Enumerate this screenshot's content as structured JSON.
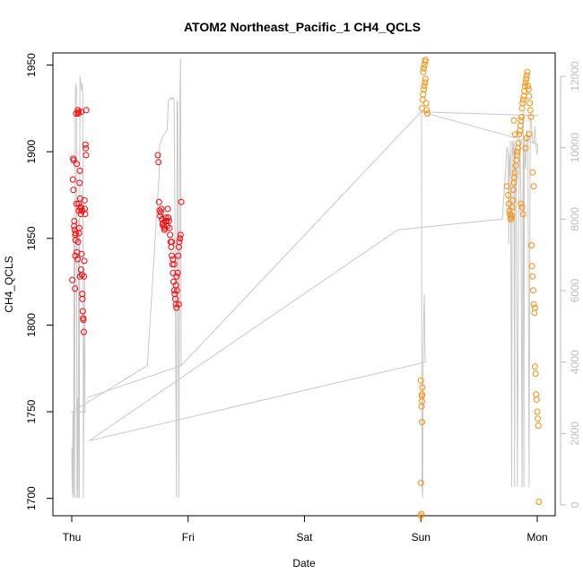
{
  "chart_data": {
    "type": "scatter",
    "title": "ATOM2 Northeast_Pacific_1 CH4_QCLS",
    "xlabel": "Date",
    "ylabel": "CH4_QCLS",
    "x_ticks": [
      "Thu",
      "Fri",
      "Sat",
      "Sun",
      "Mon"
    ],
    "x_range_days": [
      0,
      4.12
    ],
    "ylim": [
      1690,
      1957
    ],
    "y_ticks": [
      1700,
      1750,
      1800,
      1850,
      1900,
      1950
    ],
    "y2lim": [
      0,
      13000
    ],
    "y2_ticks": [
      0,
      2000,
      4000,
      6000,
      8000,
      10000,
      12000
    ],
    "colors": {
      "series1": "#ff0000",
      "series2": "#ff8c00",
      "altitude": "#c8c8c8"
    },
    "series": [
      {
        "marker": "open-circle",
        "color": "#ff0000",
        "points": [
          [
            0.005,
            1826
          ],
          [
            0.01,
            1884
          ],
          [
            0.012,
            1896
          ],
          [
            0.015,
            1878
          ],
          [
            0.017,
            1895
          ],
          [
            0.02,
            1857
          ],
          [
            0.022,
            1860
          ],
          [
            0.025,
            1855
          ],
          [
            0.03,
            1852
          ],
          [
            0.032,
            1849
          ],
          [
            0.035,
            1853
          ],
          [
            0.038,
            1922
          ],
          [
            0.04,
            1870
          ],
          [
            0.045,
            1842
          ],
          [
            0.05,
            1838
          ],
          [
            0.052,
            1924
          ],
          [
            0.055,
            1922
          ],
          [
            0.058,
            1923
          ],
          [
            0.06,
            1866
          ],
          [
            0.062,
            1853
          ],
          [
            0.065,
            1856
          ],
          [
            0.068,
            1882
          ],
          [
            0.07,
            1889
          ],
          [
            0.072,
            1873
          ],
          [
            0.075,
            1867
          ],
          [
            0.078,
            1864
          ],
          [
            0.08,
            1868
          ],
          [
            0.082,
            1923
          ],
          [
            0.085,
            1841
          ],
          [
            0.088,
            1829
          ],
          [
            0.09,
            1818
          ],
          [
            0.092,
            1815
          ],
          [
            0.095,
            1808
          ],
          [
            0.098,
            1804
          ],
          [
            0.1,
            1803
          ],
          [
            0.103,
            1796
          ],
          [
            0.105,
            1828
          ],
          [
            0.108,
            1837
          ],
          [
            0.11,
            1872
          ],
          [
            0.112,
            1867
          ],
          [
            0.115,
            1864
          ],
          [
            0.118,
            1904
          ],
          [
            0.12,
            1902
          ],
          [
            0.123,
            1898
          ],
          [
            0.125,
            1924
          ],
          [
            0.03,
            1840
          ],
          [
            0.028,
            1821
          ],
          [
            0.042,
            1893
          ],
          [
            0.055,
            1848
          ],
          [
            0.06,
            1870
          ],
          [
            0.07,
            1828
          ],
          [
            0.08,
            1832
          ],
          [
            0.09,
            1866
          ]
        ]
      },
      {
        "marker": "open-circle",
        "color": "#ff0000",
        "points": [
          [
            0.74,
            1898
          ],
          [
            0.745,
            1894
          ],
          [
            0.75,
            1871
          ],
          [
            0.755,
            1866
          ],
          [
            0.76,
            1863
          ],
          [
            0.765,
            1865
          ],
          [
            0.77,
            1867
          ],
          [
            0.775,
            1861
          ],
          [
            0.78,
            1858
          ],
          [
            0.785,
            1859
          ],
          [
            0.79,
            1857
          ],
          [
            0.795,
            1855
          ],
          [
            0.8,
            1856
          ],
          [
            0.805,
            1860
          ],
          [
            0.81,
            1862
          ],
          [
            0.815,
            1860
          ],
          [
            0.82,
            1857
          ],
          [
            0.825,
            1867
          ],
          [
            0.83,
            1862
          ],
          [
            0.835,
            1860
          ],
          [
            0.84,
            1856
          ],
          [
            0.845,
            1852
          ],
          [
            0.85,
            1848
          ],
          [
            0.855,
            1845
          ],
          [
            0.86,
            1840
          ],
          [
            0.865,
            1835
          ],
          [
            0.87,
            1830
          ],
          [
            0.875,
            1825
          ],
          [
            0.88,
            1820
          ],
          [
            0.885,
            1818
          ],
          [
            0.89,
            1815
          ],
          [
            0.895,
            1812
          ],
          [
            0.9,
            1810
          ],
          [
            0.905,
            1820
          ],
          [
            0.91,
            1830
          ],
          [
            0.915,
            1840
          ],
          [
            0.92,
            1845
          ],
          [
            0.925,
            1848
          ],
          [
            0.93,
            1850
          ],
          [
            0.935,
            1852
          ],
          [
            0.94,
            1871
          ],
          [
            0.88,
            1835
          ],
          [
            0.9,
            1828
          ],
          [
            0.92,
            1812
          ],
          [
            0.86,
            1848
          ],
          [
            0.87,
            1838
          ],
          [
            0.895,
            1823
          ]
        ]
      },
      {
        "marker": "open-circle",
        "color": "#ff8c00",
        "points": [
          [
            3.0,
            1690
          ],
          [
            3.005,
            1691
          ],
          [
            3.0,
            1709
          ],
          [
            3.01,
            1744
          ],
          [
            3.005,
            1753
          ],
          [
            3.01,
            1756
          ],
          [
            3.008,
            1759
          ],
          [
            3.01,
            1760
          ],
          [
            3.012,
            1764
          ],
          [
            3.0,
            1768
          ],
          [
            3.01,
            1925
          ],
          [
            3.015,
            1930
          ],
          [
            3.02,
            1933
          ],
          [
            3.025,
            1936
          ],
          [
            3.03,
            1938
          ],
          [
            3.035,
            1940
          ],
          [
            3.04,
            1942
          ],
          [
            3.02,
            1946
          ],
          [
            3.025,
            1948
          ],
          [
            3.03,
            1950
          ],
          [
            3.035,
            1952
          ],
          [
            3.04,
            1953
          ],
          [
            3.045,
            1928
          ],
          [
            3.05,
            1924
          ],
          [
            3.055,
            1922
          ]
        ]
      },
      {
        "marker": "open-circle",
        "color": "#ff8c00",
        "points": [
          [
            3.74,
            1880
          ],
          [
            3.75,
            1875
          ],
          [
            3.755,
            1870
          ],
          [
            3.76,
            1866
          ],
          [
            3.765,
            1864
          ],
          [
            3.77,
            1862
          ],
          [
            3.775,
            1861
          ],
          [
            3.78,
            1863
          ],
          [
            3.785,
            1868
          ],
          [
            3.79,
            1872
          ],
          [
            3.795,
            1878
          ],
          [
            3.8,
            1882
          ],
          [
            3.805,
            1885
          ],
          [
            3.81,
            1888
          ],
          [
            3.815,
            1892
          ],
          [
            3.82,
            1895
          ],
          [
            3.825,
            1898
          ],
          [
            3.83,
            1900
          ],
          [
            3.835,
            1902
          ],
          [
            3.84,
            1905
          ],
          [
            3.845,
            1910
          ],
          [
            3.85,
            1912
          ],
          [
            3.855,
            1915
          ],
          [
            3.86,
            1918
          ],
          [
            3.865,
            1920
          ],
          [
            3.87,
            1925
          ],
          [
            3.875,
            1928
          ],
          [
            3.88,
            1930
          ],
          [
            3.885,
            1932
          ],
          [
            3.89,
            1935
          ],
          [
            3.895,
            1938
          ],
          [
            3.9,
            1940
          ],
          [
            3.905,
            1942
          ],
          [
            3.91,
            1944
          ],
          [
            3.915,
            1946
          ],
          [
            3.92,
            1938
          ],
          [
            3.925,
            1936
          ],
          [
            3.93,
            1932
          ],
          [
            3.935,
            1928
          ],
          [
            3.94,
            1924
          ],
          [
            3.945,
            1920
          ],
          [
            3.95,
            1846
          ],
          [
            3.955,
            1834
          ],
          [
            3.96,
            1828
          ],
          [
            3.965,
            1820
          ],
          [
            3.97,
            1812
          ],
          [
            3.975,
            1807
          ],
          [
            3.98,
            1776
          ],
          [
            3.985,
            1772
          ],
          [
            3.99,
            1760
          ],
          [
            3.995,
            1757
          ],
          [
            4.0,
            1750
          ],
          [
            4.005,
            1746
          ],
          [
            4.01,
            1742
          ],
          [
            4.015,
            1698
          ],
          [
            3.96,
            1888
          ],
          [
            3.97,
            1880
          ],
          [
            3.8,
            1918
          ],
          [
            3.81,
            1910
          ],
          [
            3.86,
            1870
          ],
          [
            3.87,
            1868
          ],
          [
            3.88,
            1864
          ],
          [
            3.9,
            1902
          ],
          [
            3.91,
            1908
          ],
          [
            3.93,
            1910
          ],
          [
            3.98,
            1810
          ]
        ]
      }
    ],
    "altitude_line": [
      [
        0.0,
        1600
      ],
      [
        0.005,
        300
      ],
      [
        0.01,
        2600
      ],
      [
        0.015,
        200
      ],
      [
        0.02,
        7500
      ],
      [
        0.025,
        200
      ],
      [
        0.03,
        11300
      ],
      [
        0.035,
        11800
      ],
      [
        0.04,
        11700
      ],
      [
        0.045,
        200
      ],
      [
        0.05,
        3000
      ],
      [
        0.055,
        200
      ],
      [
        0.06,
        8000
      ],
      [
        0.065,
        200
      ],
      [
        0.07,
        12000
      ],
      [
        0.075,
        11900
      ],
      [
        0.08,
        11700
      ],
      [
        0.085,
        11600
      ],
      [
        0.09,
        11800
      ],
      [
        0.095,
        11500
      ],
      [
        0.1,
        200
      ],
      [
        0.105,
        3300
      ],
      [
        0.11,
        6500
      ],
      [
        0.115,
        2600
      ],
      [
        0.12,
        2600
      ],
      [
        0.125,
        2600
      ],
      [
        0.0,
        2600
      ],
      [
        0.65,
        3900
      ],
      [
        0.75,
        9200
      ],
      [
        0.755,
        10100
      ],
      [
        0.76,
        10100
      ],
      [
        0.77,
        10200
      ],
      [
        0.78,
        10300
      ],
      [
        0.8,
        10400
      ],
      [
        0.82,
        10500
      ],
      [
        0.83,
        11300
      ],
      [
        0.85,
        11400
      ],
      [
        0.86,
        11350
      ],
      [
        0.87,
        11400
      ],
      [
        0.88,
        11300
      ],
      [
        0.9,
        200
      ],
      [
        0.905,
        11300
      ],
      [
        0.91,
        11300
      ],
      [
        0.92,
        200
      ],
      [
        0.93,
        11500
      ],
      [
        0.935,
        12500
      ],
      [
        0.94,
        3900
      ],
      [
        0.13,
        3000
      ],
      [
        0.94,
        3900
      ],
      [
        3.0,
        11000
      ],
      [
        3.005,
        11000
      ],
      [
        3.01,
        500
      ],
      [
        3.015,
        200
      ],
      [
        3.02,
        4000
      ],
      [
        3.025,
        5400
      ],
      [
        3.03,
        5900
      ],
      [
        3.035,
        4200
      ],
      [
        3.04,
        4000
      ],
      [
        0.15,
        1800
      ],
      [
        2.8,
        7700
      ],
      [
        3.7,
        8000
      ],
      [
        3.74,
        10000
      ],
      [
        3.745,
        10000
      ],
      [
        3.75,
        9800
      ],
      [
        3.755,
        7300
      ],
      [
        3.76,
        9800
      ],
      [
        3.765,
        9200
      ],
      [
        3.77,
        10200
      ],
      [
        3.78,
        500
      ],
      [
        3.785,
        10200
      ],
      [
        3.79,
        9800
      ],
      [
        3.8,
        10200
      ],
      [
        3.805,
        500
      ],
      [
        3.81,
        10000
      ],
      [
        3.82,
        9200
      ],
      [
        3.83,
        500
      ],
      [
        3.84,
        7900
      ],
      [
        3.85,
        10200
      ],
      [
        3.86,
        8700
      ],
      [
        3.87,
        500
      ],
      [
        3.88,
        11000
      ],
      [
        3.885,
        500
      ],
      [
        3.89,
        10200
      ],
      [
        3.9,
        9400
      ],
      [
        3.91,
        10500
      ],
      [
        3.92,
        10100
      ],
      [
        3.93,
        500
      ],
      [
        3.94,
        10900
      ],
      [
        3.95,
        10700
      ],
      [
        3.96,
        10200
      ],
      [
        3.97,
        10100
      ],
      [
        3.98,
        10600
      ],
      [
        3.99,
        10000
      ],
      [
        4.0,
        9800
      ],
      [
        4.005,
        10100
      ],
      [
        3.01,
        11000
      ],
      [
        4.01,
        10900
      ]
    ]
  }
}
